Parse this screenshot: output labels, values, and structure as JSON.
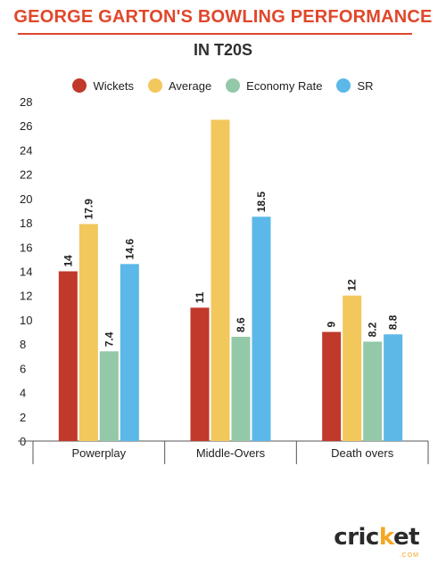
{
  "title": "GEORGE GARTON'S BOWLING PERFORMANCE",
  "subtitle": "IN T20S",
  "logo": {
    "main_pre": "cric",
    "main_accent": "k",
    "main_post": "et",
    "sub": ".COM"
  },
  "chart_data": {
    "type": "bar",
    "categories": [
      "Powerplay",
      "Middle-Overs",
      "Death overs"
    ],
    "series": [
      {
        "name": "Wickets",
        "color": "#c0392b",
        "values": [
          14,
          11,
          9
        ],
        "labels": [
          "14",
          "11",
          "9"
        ]
      },
      {
        "name": "Average",
        "color": "#f2c75c",
        "values": [
          17.9,
          26.5,
          12
        ],
        "labels": [
          "17.9",
          "",
          "12"
        ]
      },
      {
        "name": "Economy Rate",
        "color": "#93c8a8",
        "values": [
          7.4,
          8.6,
          8.2
        ],
        "labels": [
          "7.4",
          "8.6",
          "8.2"
        ]
      },
      {
        "name": "SR",
        "color": "#5bb8e8",
        "values": [
          14.6,
          18.5,
          8.8
        ],
        "labels": [
          "14.6",
          "18.5",
          "8.8"
        ]
      }
    ],
    "ylim": [
      0,
      28
    ],
    "yticks": [
      "0",
      "2",
      "4",
      "6",
      "8",
      "10",
      "12",
      "14",
      "16",
      "18",
      "20",
      "22",
      "24",
      "26",
      "28"
    ],
    "grid": false,
    "legend": "top-center"
  }
}
